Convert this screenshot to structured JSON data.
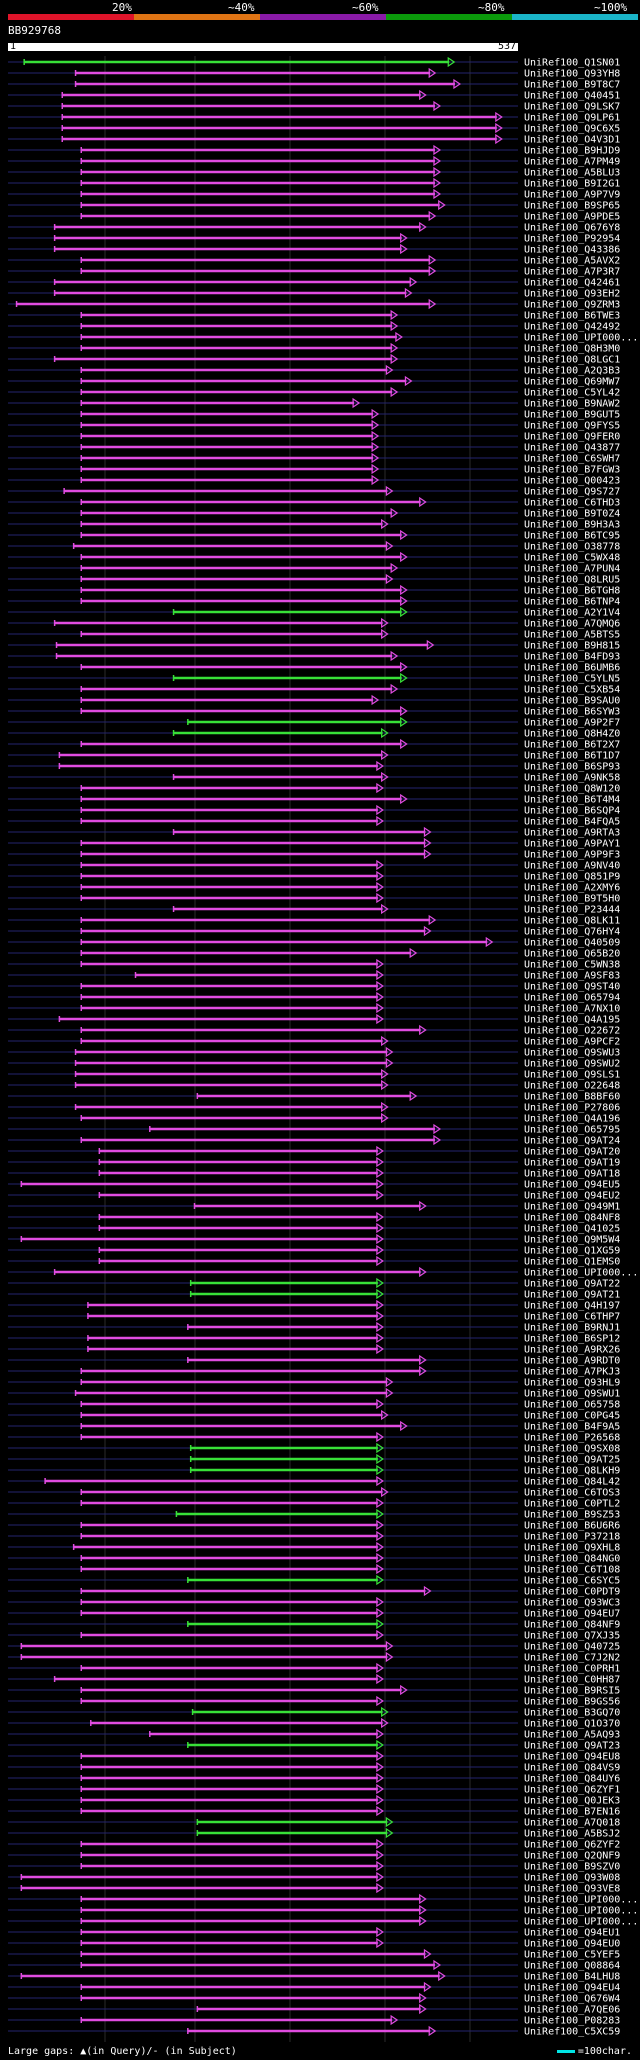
{
  "legend": {
    "labels": [
      "20%",
      "~40%",
      "~60%",
      "~80%",
      "~100%"
    ],
    "colors": [
      "#e0142a",
      "#e07414",
      "#8a1aa8",
      "#0b9a0b",
      "#1ab4c8"
    ]
  },
  "query": {
    "id": "BB929768",
    "start": "1",
    "end": "537",
    "length": 537
  },
  "colors": {
    "magenta": "#e04ce0",
    "green": "#38e038",
    "line": "#24246e",
    "bg": "#000000"
  },
  "footer": {
    "gaps_text": "Large gaps: ▲(in Query)/- (in Subject)",
    "scale_text": "=100char."
  },
  "hits": [
    {
      "label": "UniRef100_Q1SN01",
      "s": 18,
      "e": 470,
      "c": "g"
    },
    {
      "label": "UniRef100_Q93YH8",
      "s": 72,
      "e": 450,
      "c": "m"
    },
    {
      "label": "UniRef100_B9T8C7",
      "s": 72,
      "e": 476,
      "c": "m"
    },
    {
      "label": "UniRef100_Q40451",
      "s": 58,
      "e": 440,
      "c": "m"
    },
    {
      "label": "UniRef100_Q9LSK7",
      "s": 58,
      "e": 455,
      "c": "m"
    },
    {
      "label": "UniRef100_Q9LP61",
      "s": 58,
      "e": 520,
      "c": "m"
    },
    {
      "label": "UniRef100_Q9C6X5",
      "s": 58,
      "e": 520,
      "c": "m"
    },
    {
      "label": "UniRef100_O4V3D1",
      "s": 58,
      "e": 520,
      "c": "m"
    },
    {
      "label": "UniRef100_B9HJD9",
      "s": 78,
      "e": 455,
      "c": "m"
    },
    {
      "label": "UniRef100_A7PM49",
      "s": 78,
      "e": 455,
      "c": "m"
    },
    {
      "label": "UniRef100_A5BLU3",
      "s": 78,
      "e": 455,
      "c": "m"
    },
    {
      "label": "UniRef100_B9I2G1",
      "s": 78,
      "e": 455,
      "c": "m"
    },
    {
      "label": "UniRef100_A9P7V9",
      "s": 78,
      "e": 455,
      "c": "m"
    },
    {
      "label": "UniRef100_B9SP65",
      "s": 78,
      "e": 460,
      "c": "m"
    },
    {
      "label": "UniRef100_A9PDE5",
      "s": 78,
      "e": 450,
      "c": "m"
    },
    {
      "label": "UniRef100_Q676Y8",
      "s": 50,
      "e": 440,
      "c": "m"
    },
    {
      "label": "UniRef100_P92954",
      "s": 50,
      "e": 420,
      "c": "m"
    },
    {
      "label": "UniRef100_Q43386",
      "s": 50,
      "e": 420,
      "c": "m"
    },
    {
      "label": "UniRef100_A5AVX2",
      "s": 78,
      "e": 450,
      "c": "m"
    },
    {
      "label": "UniRef100_A7P3R7",
      "s": 78,
      "e": 450,
      "c": "m"
    },
    {
      "label": "UniRef100_Q42461",
      "s": 50,
      "e": 430,
      "c": "m"
    },
    {
      "label": "UniRef100_Q93EH2",
      "s": 50,
      "e": 425,
      "c": "m"
    },
    {
      "label": "UniRef100_Q9ZRM3",
      "s": 10,
      "e": 450,
      "c": "m"
    },
    {
      "label": "UniRef100_B6TWE3",
      "s": 78,
      "e": 410,
      "c": "m"
    },
    {
      "label": "UniRef100_Q42492",
      "s": 78,
      "e": 410,
      "c": "m"
    },
    {
      "label": "UniRef100_UPI000...",
      "s": 78,
      "e": 415,
      "c": "m"
    },
    {
      "label": "UniRef100_Q8H3M0",
      "s": 78,
      "e": 410,
      "c": "m"
    },
    {
      "label": "UniRef100_Q8LGC1",
      "s": 50,
      "e": 410,
      "c": "m"
    },
    {
      "label": "UniRef100_A2Q3B3",
      "s": 78,
      "e": 405,
      "c": "m"
    },
    {
      "label": "UniRef100_Q69MW7",
      "s": 78,
      "e": 425,
      "c": "m"
    },
    {
      "label": "UniRef100_C5YL42",
      "s": 78,
      "e": 410,
      "c": "m"
    },
    {
      "label": "UniRef100_B9NAW2",
      "s": 78,
      "e": 370,
      "c": "m"
    },
    {
      "label": "UniRef100_B9GUT5",
      "s": 78,
      "e": 390,
      "c": "m"
    },
    {
      "label": "UniRef100_Q9FYS5",
      "s": 78,
      "e": 390,
      "c": "m"
    },
    {
      "label": "UniRef100_Q9FER0",
      "s": 78,
      "e": 390,
      "c": "m"
    },
    {
      "label": "UniRef100_Q43877",
      "s": 78,
      "e": 390,
      "c": "m"
    },
    {
      "label": "UniRef100_C6SWH7",
      "s": 78,
      "e": 390,
      "c": "m"
    },
    {
      "label": "UniRef100_B7FGW3",
      "s": 78,
      "e": 390,
      "c": "m"
    },
    {
      "label": "UniRef100_Q00423",
      "s": 78,
      "e": 390,
      "c": "m"
    },
    {
      "label": "UniRef100_Q9S727",
      "s": 60,
      "e": 405,
      "c": "m"
    },
    {
      "label": "UniRef100_C6THD3",
      "s": 78,
      "e": 440,
      "c": "m"
    },
    {
      "label": "UniRef100_B9T0Z4",
      "s": 78,
      "e": 410,
      "c": "m"
    },
    {
      "label": "UniRef100_B9H3A3",
      "s": 78,
      "e": 400,
      "c": "m"
    },
    {
      "label": "UniRef100_B6TC95",
      "s": 78,
      "e": 420,
      "c": "m"
    },
    {
      "label": "UniRef100_O38778",
      "s": 70,
      "e": 405,
      "c": "m"
    },
    {
      "label": "UniRef100_C5WX48",
      "s": 78,
      "e": 420,
      "c": "m"
    },
    {
      "label": "UniRef100_A7PUN4",
      "s": 78,
      "e": 410,
      "c": "m"
    },
    {
      "label": "UniRef100_Q8LRU5",
      "s": 78,
      "e": 405,
      "c": "m"
    },
    {
      "label": "UniRef100_B6TGH8",
      "s": 78,
      "e": 420,
      "c": "m"
    },
    {
      "label": "UniRef100_B6TNP4",
      "s": 78,
      "e": 420,
      "c": "m"
    },
    {
      "label": "UniRef100_A2Y1V4",
      "s": 175,
      "e": 420,
      "c": "g"
    },
    {
      "label": "UniRef100_A7QMQ6",
      "s": 50,
      "e": 400,
      "c": "m"
    },
    {
      "label": "UniRef100_A5BTS5",
      "s": 78,
      "e": 400,
      "c": "m"
    },
    {
      "label": "UniRef100_B9H815",
      "s": 52,
      "e": 448,
      "c": "m"
    },
    {
      "label": "UniRef100_B4FD93",
      "s": 52,
      "e": 410,
      "c": "m"
    },
    {
      "label": "UniRef100_B6UMB6",
      "s": 78,
      "e": 420,
      "c": "m"
    },
    {
      "label": "UniRef100_C5YLN5",
      "s": 175,
      "e": 420,
      "c": "g"
    },
    {
      "label": "UniRef100_C5XB54",
      "s": 78,
      "e": 410,
      "c": "m"
    },
    {
      "label": "UniRef100_B9SAU0",
      "s": 78,
      "e": 390,
      "c": "m"
    },
    {
      "label": "UniRef100_B6SYW3",
      "s": 78,
      "e": 420,
      "c": "m"
    },
    {
      "label": "UniRef100_A9P2F7",
      "s": 190,
      "e": 420,
      "c": "g"
    },
    {
      "label": "UniRef100_Q8H4Z0",
      "s": 175,
      "e": 400,
      "c": "g"
    },
    {
      "label": "UniRef100_B6T2X7",
      "s": 78,
      "e": 420,
      "c": "m"
    },
    {
      "label": "UniRef100_B6T1D7",
      "s": 55,
      "e": 400,
      "c": "m"
    },
    {
      "label": "UniRef100_B6SP93",
      "s": 55,
      "e": 395,
      "c": "m"
    },
    {
      "label": "UniRef100_A9NK58",
      "s": 175,
      "e": 400,
      "c": "m"
    },
    {
      "label": "UniRef100_Q8W120",
      "s": 78,
      "e": 395,
      "c": "m"
    },
    {
      "label": "UniRef100_B6T4M4",
      "s": 78,
      "e": 420,
      "c": "m"
    },
    {
      "label": "UniRef100_B6SQP4",
      "s": 78,
      "e": 395,
      "c": "m"
    },
    {
      "label": "UniRef100_B4FQA5",
      "s": 78,
      "e": 395,
      "c": "m"
    },
    {
      "label": "UniRef100_A9RTA3",
      "s": 175,
      "e": 445,
      "c": "m"
    },
    {
      "label": "UniRef100_A9PAY1",
      "s": 78,
      "e": 445,
      "c": "m"
    },
    {
      "label": "UniRef100_A9P9F3",
      "s": 78,
      "e": 445,
      "c": "m"
    },
    {
      "label": "UniRef100_A9NV40",
      "s": 78,
      "e": 395,
      "c": "m"
    },
    {
      "label": "UniRef100_Q851P9",
      "s": 78,
      "e": 395,
      "c": "m"
    },
    {
      "label": "UniRef100_A2XMY6",
      "s": 78,
      "e": 395,
      "c": "m"
    },
    {
      "label": "UniRef100_B9T5H0",
      "s": 78,
      "e": 395,
      "c": "m"
    },
    {
      "label": "UniRef100_P23444",
      "s": 175,
      "e": 400,
      "c": "m"
    },
    {
      "label": "UniRef100_Q8LK11",
      "s": 78,
      "e": 450,
      "c": "m"
    },
    {
      "label": "UniRef100_Q76HY4",
      "s": 78,
      "e": 445,
      "c": "m"
    },
    {
      "label": "UniRef100_Q40509",
      "s": 78,
      "e": 510,
      "c": "m"
    },
    {
      "label": "UniRef100_Q65B20",
      "s": 78,
      "e": 430,
      "c": "m"
    },
    {
      "label": "UniRef100_C5WN38",
      "s": 78,
      "e": 395,
      "c": "m"
    },
    {
      "label": "UniRef100_A9SF83",
      "s": 135,
      "e": 395,
      "c": "m"
    },
    {
      "label": "UniRef100_Q9ST40",
      "s": 78,
      "e": 395,
      "c": "m"
    },
    {
      "label": "UniRef100_O65794",
      "s": 78,
      "e": 395,
      "c": "m"
    },
    {
      "label": "UniRef100_A7NX10",
      "s": 78,
      "e": 395,
      "c": "m"
    },
    {
      "label": "UniRef100_Q4A195",
      "s": 55,
      "e": 395,
      "c": "m"
    },
    {
      "label": "UniRef100_O22672",
      "s": 78,
      "e": 440,
      "c": "m"
    },
    {
      "label": "UniRef100_A9PCF2",
      "s": 78,
      "e": 400,
      "c": "m"
    },
    {
      "label": "UniRef100_Q9SWU3",
      "s": 72,
      "e": 405,
      "c": "m"
    },
    {
      "label": "UniRef100_Q9SWU2",
      "s": 72,
      "e": 405,
      "c": "m"
    },
    {
      "label": "UniRef100_Q9SLS1",
      "s": 72,
      "e": 400,
      "c": "m"
    },
    {
      "label": "UniRef100_O22648",
      "s": 72,
      "e": 400,
      "c": "m"
    },
    {
      "label": "UniRef100_B8BF60",
      "s": 200,
      "e": 430,
      "c": "m"
    },
    {
      "label": "UniRef100_P27806",
      "s": 72,
      "e": 400,
      "c": "m"
    },
    {
      "label": "UniRef100_Q4A196",
      "s": 78,
      "e": 400,
      "c": "m"
    },
    {
      "label": "UniRef100_O65795",
      "s": 150,
      "e": 455,
      "c": "m"
    },
    {
      "label": "UniRef100_Q9AT24",
      "s": 78,
      "e": 455,
      "c": "m"
    },
    {
      "label": "UniRef100_Q9AT20",
      "s": 97,
      "e": 395,
      "c": "m"
    },
    {
      "label": "UniRef100_Q9AT19",
      "s": 97,
      "e": 395,
      "c": "m"
    },
    {
      "label": "UniRef100_Q9AT18",
      "s": 97,
      "e": 395,
      "c": "m"
    },
    {
      "label": "UniRef100_Q94EU5",
      "s": 15,
      "e": 395,
      "c": "m"
    },
    {
      "label": "UniRef100_Q94EU2",
      "s": 97,
      "e": 395,
      "c": "m"
    },
    {
      "label": "UniRef100_Q949M1",
      "s": 197,
      "e": 440,
      "c": "m"
    },
    {
      "label": "UniRef100_Q84NF8",
      "s": 97,
      "e": 395,
      "c": "m"
    },
    {
      "label": "UniRef100_Q41025",
      "s": 97,
      "e": 395,
      "c": "m"
    },
    {
      "label": "UniRef100_Q9M5W4",
      "s": 15,
      "e": 395,
      "c": "m"
    },
    {
      "label": "UniRef100_Q1XG59",
      "s": 97,
      "e": 395,
      "c": "m"
    },
    {
      "label": "UniRef100_Q1EMS0",
      "s": 97,
      "e": 395,
      "c": "m"
    },
    {
      "label": "UniRef100_UPI000...",
      "s": 50,
      "e": 440,
      "c": "m"
    },
    {
      "label": "UniRef100_Q9AT22",
      "s": 193,
      "e": 395,
      "c": "g"
    },
    {
      "label": "UniRef100_Q9AT21",
      "s": 193,
      "e": 395,
      "c": "g"
    },
    {
      "label": "UniRef100_Q4H197",
      "s": 85,
      "e": 395,
      "c": "m"
    },
    {
      "label": "UniRef100_C6THP7",
      "s": 85,
      "e": 395,
      "c": "m"
    },
    {
      "label": "UniRef100_B9RNJ1",
      "s": 190,
      "e": 395,
      "c": "m"
    },
    {
      "label": "UniRef100_B6SP12",
      "s": 85,
      "e": 395,
      "c": "m"
    },
    {
      "label": "UniRef100_A9RX26",
      "s": 85,
      "e": 395,
      "c": "m"
    },
    {
      "label": "UniRef100_A9RDT0",
      "s": 190,
      "e": 440,
      "c": "m"
    },
    {
      "label": "UniRef100_A7PKJ3",
      "s": 78,
      "e": 440,
      "c": "m"
    },
    {
      "label": "UniRef100_Q93HL9",
      "s": 78,
      "e": 405,
      "c": "m"
    },
    {
      "label": "UniRef100_Q9SWU1",
      "s": 72,
      "e": 405,
      "c": "m"
    },
    {
      "label": "UniRef100_O65758",
      "s": 78,
      "e": 395,
      "c": "m"
    },
    {
      "label": "UniRef100_C0PG45",
      "s": 78,
      "e": 400,
      "c": "m"
    },
    {
      "label": "UniRef100_B4F9A5",
      "s": 78,
      "e": 420,
      "c": "m"
    },
    {
      "label": "UniRef100_P26568",
      "s": 78,
      "e": 395,
      "c": "m"
    },
    {
      "label": "UniRef100_Q9SX08",
      "s": 193,
      "e": 395,
      "c": "g"
    },
    {
      "label": "UniRef100_Q9AT25",
      "s": 193,
      "e": 395,
      "c": "g"
    },
    {
      "label": "UniRef100_Q8LKH9",
      "s": 193,
      "e": 395,
      "c": "g"
    },
    {
      "label": "UniRef100_Q84L42",
      "s": 40,
      "e": 395,
      "c": "m"
    },
    {
      "label": "UniRef100_C6TOS3",
      "s": 78,
      "e": 400,
      "c": "m"
    },
    {
      "label": "UniRef100_C0PTL2",
      "s": 78,
      "e": 395,
      "c": "m"
    },
    {
      "label": "UniRef100_B9SZ53",
      "s": 178,
      "e": 395,
      "c": "g"
    },
    {
      "label": "UniRef100_B6U6R6",
      "s": 78,
      "e": 395,
      "c": "m"
    },
    {
      "label": "UniRef100_P37218",
      "s": 78,
      "e": 395,
      "c": "m"
    },
    {
      "label": "UniRef100_Q9XHL8",
      "s": 70,
      "e": 395,
      "c": "m"
    },
    {
      "label": "UniRef100_Q84NG0",
      "s": 78,
      "e": 395,
      "c": "m"
    },
    {
      "label": "UniRef100_C6T108",
      "s": 78,
      "e": 395,
      "c": "m"
    },
    {
      "label": "UniRef100_C6SYC5",
      "s": 190,
      "e": 395,
      "c": "g"
    },
    {
      "label": "UniRef100_C0PDT9",
      "s": 78,
      "e": 445,
      "c": "m"
    },
    {
      "label": "UniRef100_Q93WC3",
      "s": 78,
      "e": 395,
      "c": "m"
    },
    {
      "label": "UniRef100_Q94EU7",
      "s": 78,
      "e": 395,
      "c": "m"
    },
    {
      "label": "UniRef100_Q84NF9",
      "s": 190,
      "e": 395,
      "c": "g"
    },
    {
      "label": "UniRef100_Q7XJ35",
      "s": 78,
      "e": 395,
      "c": "m"
    },
    {
      "label": "UniRef100_Q40725",
      "s": 15,
      "e": 405,
      "c": "m"
    },
    {
      "label": "UniRef100_C7J2N2",
      "s": 15,
      "e": 405,
      "c": "m"
    },
    {
      "label": "UniRef100_C0PRH1",
      "s": 78,
      "e": 395,
      "c": "m"
    },
    {
      "label": "UniRef100_C0HH87",
      "s": 50,
      "e": 395,
      "c": "m"
    },
    {
      "label": "UniRef100_B9RSI5",
      "s": 78,
      "e": 420,
      "c": "m"
    },
    {
      "label": "UniRef100_B9GS56",
      "s": 78,
      "e": 395,
      "c": "m"
    },
    {
      "label": "UniRef100_B3GQ70",
      "s": 195,
      "e": 400,
      "c": "g"
    },
    {
      "label": "UniRef100_Q1O370",
      "s": 88,
      "e": 400,
      "c": "m"
    },
    {
      "label": "UniRef100_A5AQ93",
      "s": 150,
      "e": 395,
      "c": "m"
    },
    {
      "label": "UniRef100_Q9AT23",
      "s": 190,
      "e": 395,
      "c": "g"
    },
    {
      "label": "UniRef100_Q94EU8",
      "s": 78,
      "e": 395,
      "c": "m"
    },
    {
      "label": "UniRef100_Q84VS9",
      "s": 78,
      "e": 395,
      "c": "m"
    },
    {
      "label": "UniRef100_Q84UY6",
      "s": 78,
      "e": 395,
      "c": "m"
    },
    {
      "label": "UniRef100_Q6ZYF1",
      "s": 78,
      "e": 395,
      "c": "m"
    },
    {
      "label": "UniRef100_Q0JEK3",
      "s": 78,
      "e": 395,
      "c": "m"
    },
    {
      "label": "UniRef100_B7EN16",
      "s": 78,
      "e": 395,
      "c": "m"
    },
    {
      "label": "UniRef100_A7Q018",
      "s": 200,
      "e": 405,
      "c": "g"
    },
    {
      "label": "UniRef100_A5BSJ2",
      "s": 200,
      "e": 405,
      "c": "g"
    },
    {
      "label": "UniRef100_Q6ZYF2",
      "s": 78,
      "e": 395,
      "c": "m"
    },
    {
      "label": "UniRef100_Q2QNF9",
      "s": 78,
      "e": 395,
      "c": "m"
    },
    {
      "label": "UniRef100_B9SZV0",
      "s": 78,
      "e": 395,
      "c": "m"
    },
    {
      "label": "UniRef100_Q93W08",
      "s": 15,
      "e": 395,
      "c": "m"
    },
    {
      "label": "UniRef100_Q93VE8",
      "s": 15,
      "e": 395,
      "c": "m"
    },
    {
      "label": "UniRef100_UPI000...",
      "s": 78,
      "e": 440,
      "c": "m"
    },
    {
      "label": "UniRef100_UPI000...",
      "s": 78,
      "e": 440,
      "c": "m"
    },
    {
      "label": "UniRef100_UPI000...",
      "s": 78,
      "e": 440,
      "c": "m"
    },
    {
      "label": "UniRef100_Q94EU1",
      "s": 78,
      "e": 395,
      "c": "m"
    },
    {
      "label": "UniRef100_Q94EU0",
      "s": 78,
      "e": 395,
      "c": "m"
    },
    {
      "label": "UniRef100_C5YEF5",
      "s": 78,
      "e": 445,
      "c": "m"
    },
    {
      "label": "UniRef100_Q08864",
      "s": 78,
      "e": 455,
      "c": "m"
    },
    {
      "label": "UniRef100_B4LHU8",
      "s": 15,
      "e": 460,
      "c": "m"
    },
    {
      "label": "UniRef100_Q94EU4",
      "s": 78,
      "e": 445,
      "c": "m"
    },
    {
      "label": "UniRef100_Q676W4",
      "s": 78,
      "e": 440,
      "c": "m"
    },
    {
      "label": "UniRef100_A7QE06",
      "s": 200,
      "e": 440,
      "c": "m"
    },
    {
      "label": "UniRef100_P08283",
      "s": 78,
      "e": 410,
      "c": "m"
    },
    {
      "label": "UniRef100_C5XC59",
      "s": 190,
      "e": 450,
      "c": "m"
    }
  ]
}
